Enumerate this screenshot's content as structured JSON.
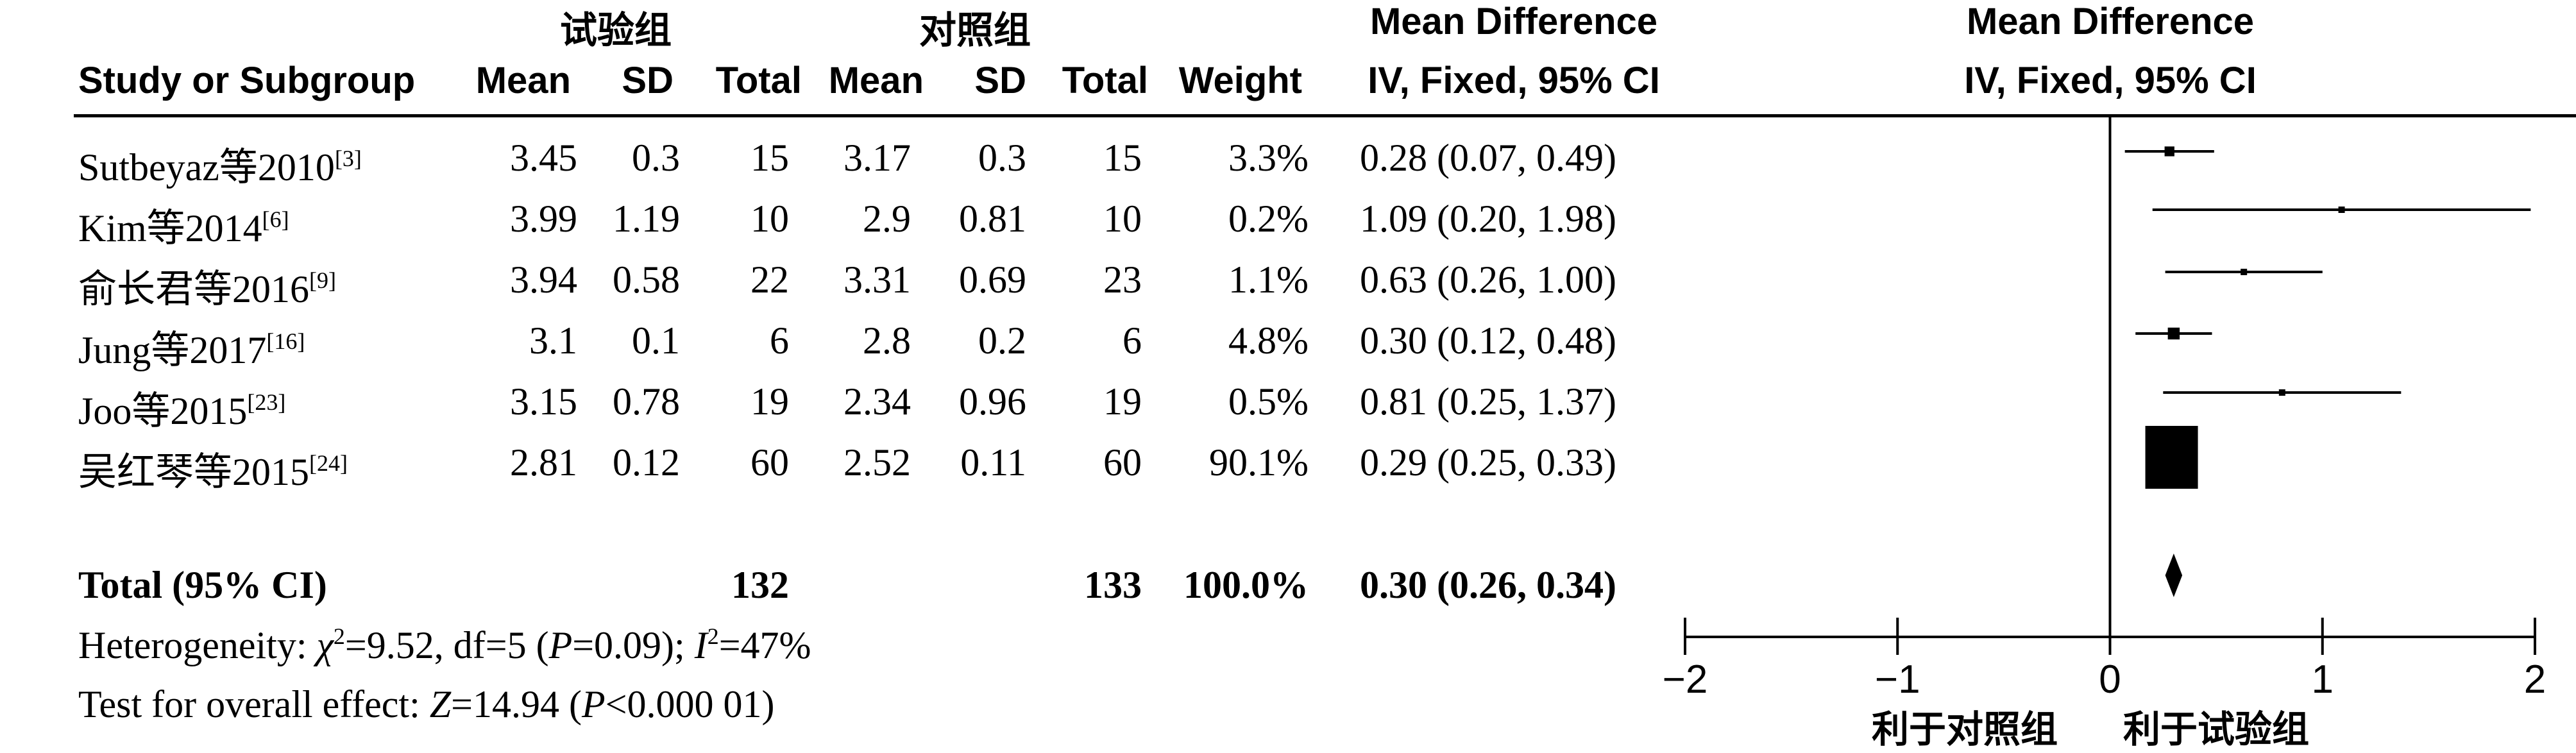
{
  "group_labels": {
    "experimental": "试验组",
    "control": "对照组"
  },
  "headers": {
    "study": "Study or Subgroup",
    "mean": "Mean",
    "sd": "SD",
    "total": "Total",
    "weight": "Weight",
    "md_line1": "Mean Difference",
    "md_line2": "IV, Fixed, 95% CI"
  },
  "rows": [
    {
      "name": "Sutbeyaz等2010",
      "ref": "[3]",
      "m1": "3.45",
      "sd1": "0.3",
      "n1": "15",
      "m2": "3.17",
      "sd2": "0.3",
      "n2": "15",
      "weight": "3.3%",
      "ci": "0.28 (0.07, 0.49)"
    },
    {
      "name": "Kim等2014",
      "ref": "[6]",
      "m1": "3.99",
      "sd1": "1.19",
      "n1": "10",
      "m2": "2.9",
      "sd2": "0.81",
      "n2": "10",
      "weight": "0.2%",
      "ci": "1.09 (0.20, 1.98)"
    },
    {
      "name": "俞长君等2016",
      "ref": "[9]",
      "m1": "3.94",
      "sd1": "0.58",
      "n1": "22",
      "m2": "3.31",
      "sd2": "0.69",
      "n2": "23",
      "weight": "1.1%",
      "ci": "0.63 (0.26, 1.00)"
    },
    {
      "name": "Jung等2017",
      "ref": "[16]",
      "m1": "3.1",
      "sd1": "0.1",
      "n1": "6",
      "m2": "2.8",
      "sd2": "0.2",
      "n2": "6",
      "weight": "4.8%",
      "ci": "0.30 (0.12, 0.48)"
    },
    {
      "name": "Joo等2015",
      "ref": "[23]",
      "m1": "3.15",
      "sd1": "0.78",
      "n1": "19",
      "m2": "2.34",
      "sd2": "0.96",
      "n2": "19",
      "weight": "0.5%",
      "ci": "0.81 (0.25, 1.37)"
    },
    {
      "name": "吴红琴等2015",
      "ref": "[24]",
      "m1": "2.81",
      "sd1": "0.12",
      "n1": "60",
      "m2": "2.52",
      "sd2": "0.11",
      "n2": "60",
      "weight": "90.1%",
      "ci": "0.29 (0.25, 0.33)"
    }
  ],
  "total": {
    "label": "Total (95% CI)",
    "n1": "132",
    "n2": "133",
    "weight": "100.0%",
    "ci": "0.30 (0.26, 0.34)"
  },
  "heterogeneity": {
    "prefix": "Heterogeneity: ",
    "chi": "χ",
    "chi_val": "=9.52, df=5 (",
    "p_label": "P",
    "p_val": "=0.09); ",
    "i_label": "I",
    "i_val": "=47%"
  },
  "overall_effect": {
    "prefix": "Test for overall effect: ",
    "z_label": "Z",
    "z_val": "=14.94 (",
    "p_label": "P",
    "p_val": "<0.000 01)"
  },
  "axis_labels": {
    "favours_control": "利于对照组",
    "favours_experimental": "利于试验组"
  },
  "chart_data": {
    "type": "forest",
    "title": "Mean Difference IV, Fixed, 95% CI",
    "xlim": [
      -2,
      2
    ],
    "ticks": [
      -2,
      -1,
      0,
      1,
      2
    ],
    "tick_labels": [
      "−2",
      "−1",
      "0",
      "1",
      "2"
    ],
    "studies": [
      {
        "name": "Sutbeyaz等2010",
        "md": 0.28,
        "lo": 0.07,
        "hi": 0.49,
        "weight": 3.3
      },
      {
        "name": "Kim等2014",
        "md": 1.09,
        "lo": 0.2,
        "hi": 1.98,
        "weight": 0.2
      },
      {
        "name": "俞长君等2016",
        "md": 0.63,
        "lo": 0.26,
        "hi": 1.0,
        "weight": 1.1
      },
      {
        "name": "Jung等2017",
        "md": 0.3,
        "lo": 0.12,
        "hi": 0.48,
        "weight": 4.8
      },
      {
        "name": "Joo等2015",
        "md": 0.81,
        "lo": 0.25,
        "hi": 1.37,
        "weight": 0.5
      },
      {
        "name": "吴红琴等2015",
        "md": 0.29,
        "lo": 0.25,
        "hi": 0.33,
        "weight": 90.1
      }
    ],
    "pooled": {
      "md": 0.3,
      "lo": 0.26,
      "hi": 0.34
    }
  }
}
